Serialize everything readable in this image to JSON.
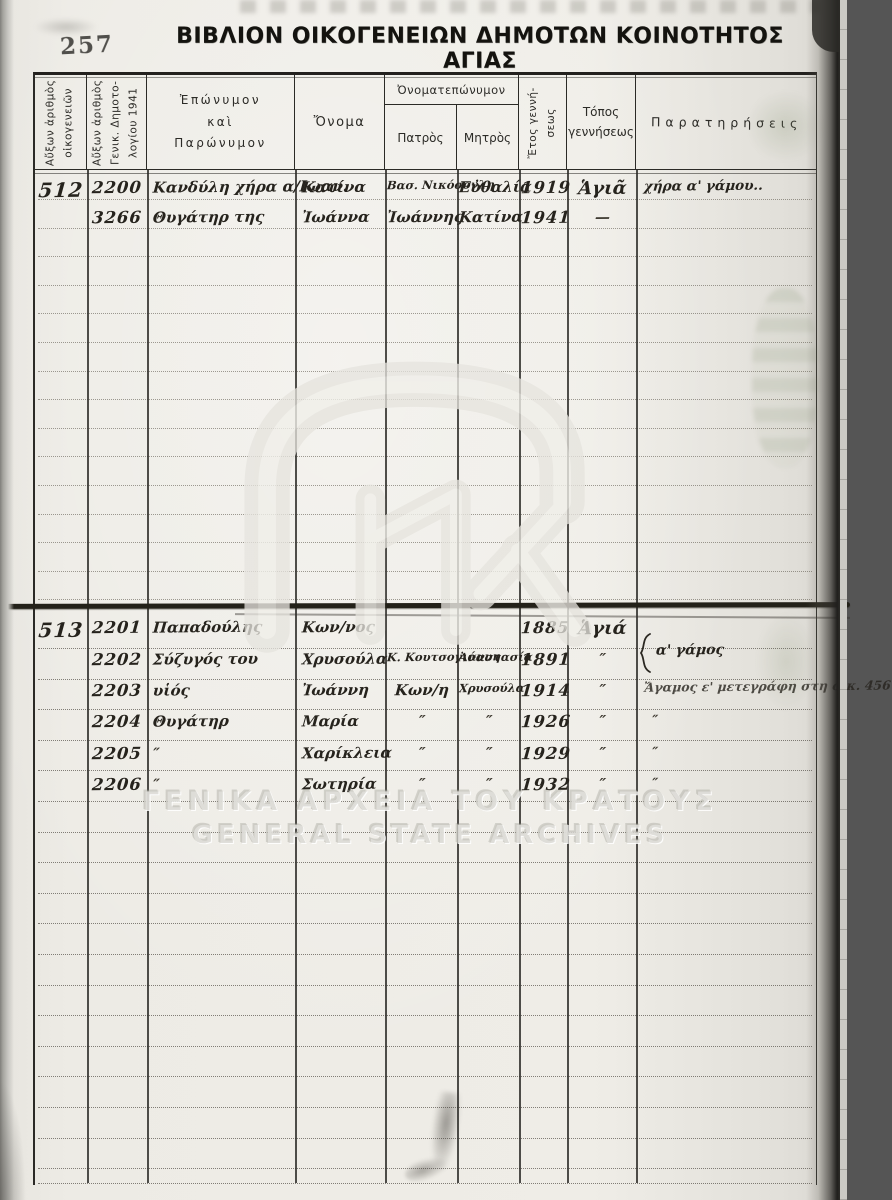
{
  "page": {
    "stamp_number": "257",
    "title": "ΒΙΒΛΙΟΝ ΟΙΚΟΓΕΝΕΙΩΝ ΔΗΜΟΤΩΝ ΚΟΙΝΟΤΗΤΟΣ ΑΓΙΑΣ"
  },
  "watermark": {
    "logo_name": "gak-monogram",
    "line1": "ΓΕΝΙΚΑ ΑΡΧΕΙΑ ΤΟΥ ΚΡΑΤΟΥΣ",
    "line2": "GENERAL STATE ARCHIVES"
  },
  "table": {
    "headers": {
      "family_serial_l1": "Αὔξων ἀριθμὸς",
      "family_serial_l2": "οἰκογενειῶν",
      "register_serial_l1": "Αὔξων ἀριθμὸς",
      "register_serial_l2": "Γενικ. Δημοτο-",
      "register_serial_l3": "λογίου 1941",
      "surname_l1": "Ἐπώνυμον",
      "surname_l2": "καὶ",
      "surname_l3": "Παρώνυμον",
      "name": "Ὄνομα",
      "full_name_group": "Ὀνοματεπώνυμον",
      "father": "Πατρὸς",
      "mother": "Μητρὸς",
      "birth_year_l1": "Ἔτος γεννή-",
      "birth_year_l2": "σεως",
      "birth_place_l1": "Τόπος",
      "birth_place_l2": "γεννήσεως",
      "remarks": "Παρατηρήσεις"
    },
    "families": [
      {
        "rows": [
          {
            "family_no": "512",
            "reg_no": "2200",
            "surname": "Κανδύλη χήρα α/Ιωαν.",
            "name": "Κατίνα",
            "father": "Βασ. Νικόσογλη",
            "mother": "Εὐθαλία",
            "year": "1919",
            "place": "Ἁγιᾶ",
            "remark": "χήρα α' γάμου.."
          },
          {
            "family_no": "",
            "reg_no": "3266",
            "surname": "Θυγάτηρ της",
            "name": "Ἰωάννα",
            "father": "Ἰωάννης",
            "mother": "Κατίνα",
            "year": "1941",
            "place": "—",
            "remark": ""
          }
        ]
      },
      {
        "rows": [
          {
            "family_no": "513",
            "reg_no": "2201",
            "surname": "Παπαδούλης",
            "name": "Κων/νος",
            "father": "",
            "mother": "",
            "year": "1885",
            "place": "Ἁγιά",
            "remark": ""
          },
          {
            "family_no": "",
            "reg_no": "2202",
            "surname": "Σύζυγός του",
            "name": "Χρυσούλα",
            "father": "Κ. Κουτσογιάννη",
            "mother": "Ἀναστασία",
            "year": "1891",
            "place": "″",
            "remark": "α' γάμος"
          },
          {
            "family_no": "",
            "reg_no": "2203",
            "surname": "υἱός",
            "name": "Ἰωάννη",
            "father": "Κων/η",
            "mother": "Χρυσούλα",
            "year": "1914",
            "place": "″",
            "remark": "Ἄγαμος ε' μετεγράφη στη οικ. 456"
          },
          {
            "family_no": "",
            "reg_no": "2204",
            "surname": "Θυγάτηρ",
            "name": "Μαρία",
            "father": "″",
            "mother": "″",
            "year": "1926",
            "place": "″",
            "remark": "″"
          },
          {
            "family_no": "",
            "reg_no": "2205",
            "surname": "″",
            "name": "Χαρίκλεια",
            "father": "″",
            "mother": "″",
            "year": "1929",
            "place": "″",
            "remark": "″"
          },
          {
            "family_no": "",
            "reg_no": "2206",
            "surname": "″",
            "name": "Σωτηρία",
            "father": "″",
            "mother": "″",
            "year": "1932",
            "place": "″",
            "remark": "″"
          }
        ]
      }
    ]
  }
}
